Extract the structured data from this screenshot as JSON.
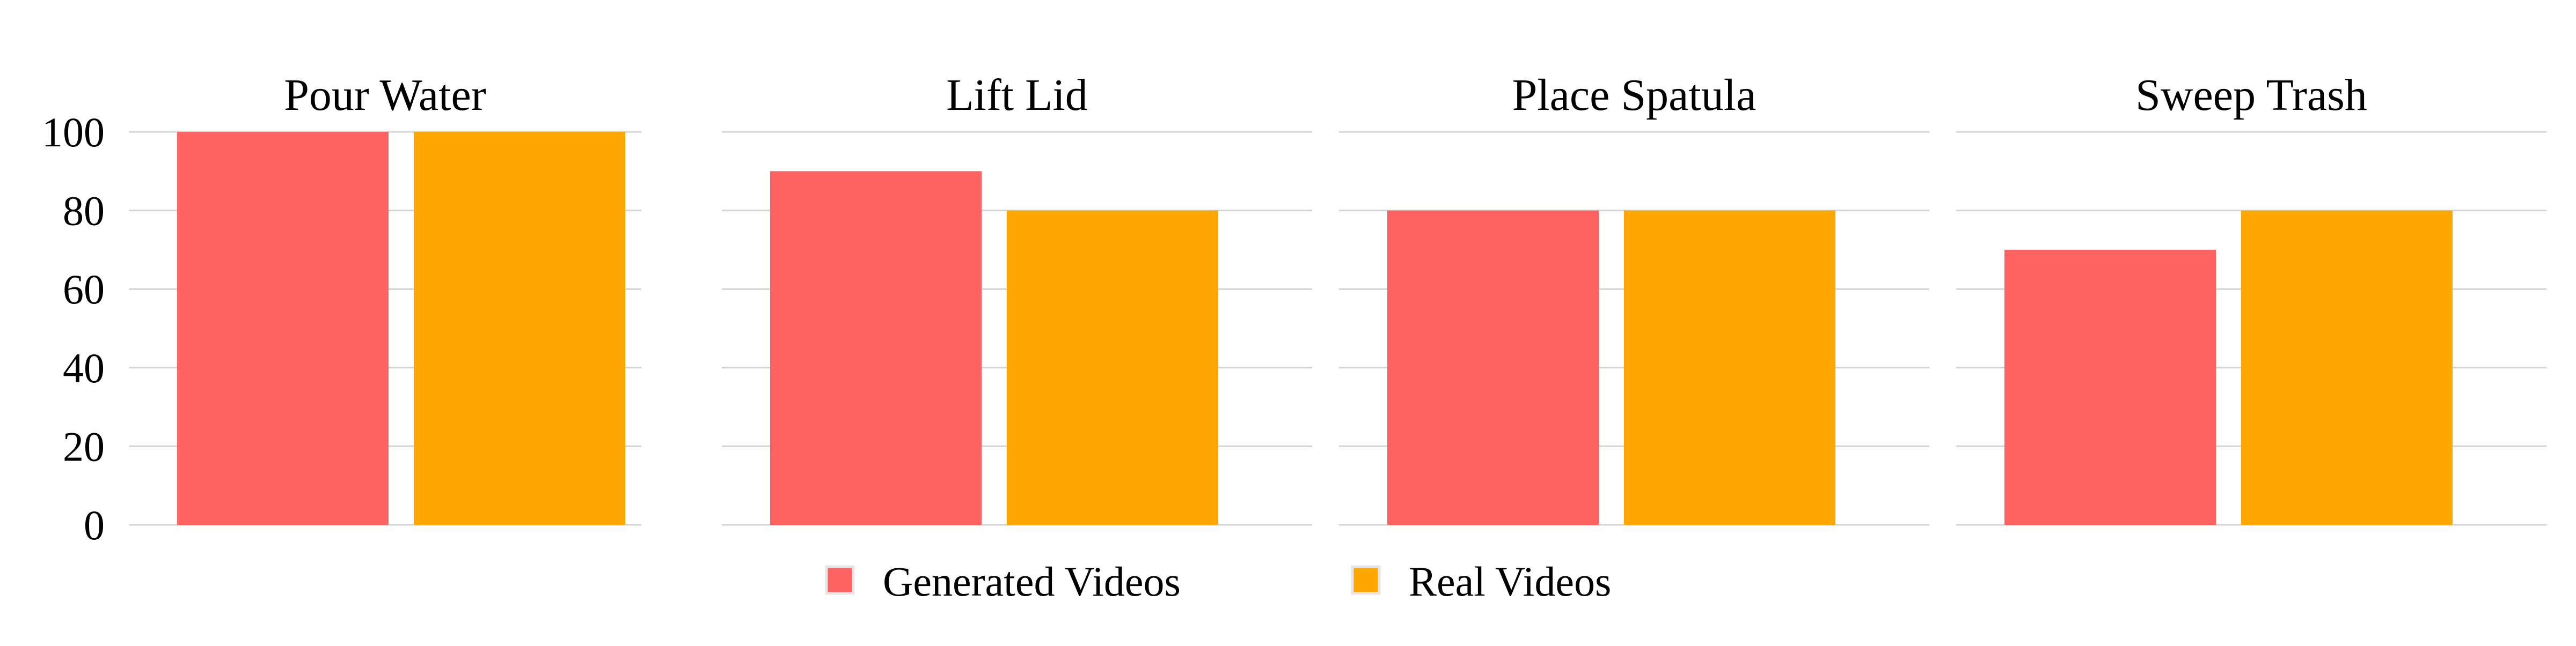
{
  "chart_data": {
    "type": "bar",
    "panels": [
      "Pour Water",
      "Lift Lid",
      "Place Spatula",
      "Sweep Trash"
    ],
    "series": [
      {
        "name": "Generated Videos",
        "color": "#ff6361",
        "values": [
          100,
          90,
          80,
          70
        ]
      },
      {
        "name": "Real Videos",
        "color": "#ffa600",
        "values": [
          100,
          80,
          80,
          80
        ]
      }
    ],
    "yticks": [
      "0",
      "20",
      "40",
      "60",
      "80",
      "100"
    ],
    "ylim": [
      0,
      100
    ],
    "grid": true,
    "legend_position": "bottom-center"
  }
}
